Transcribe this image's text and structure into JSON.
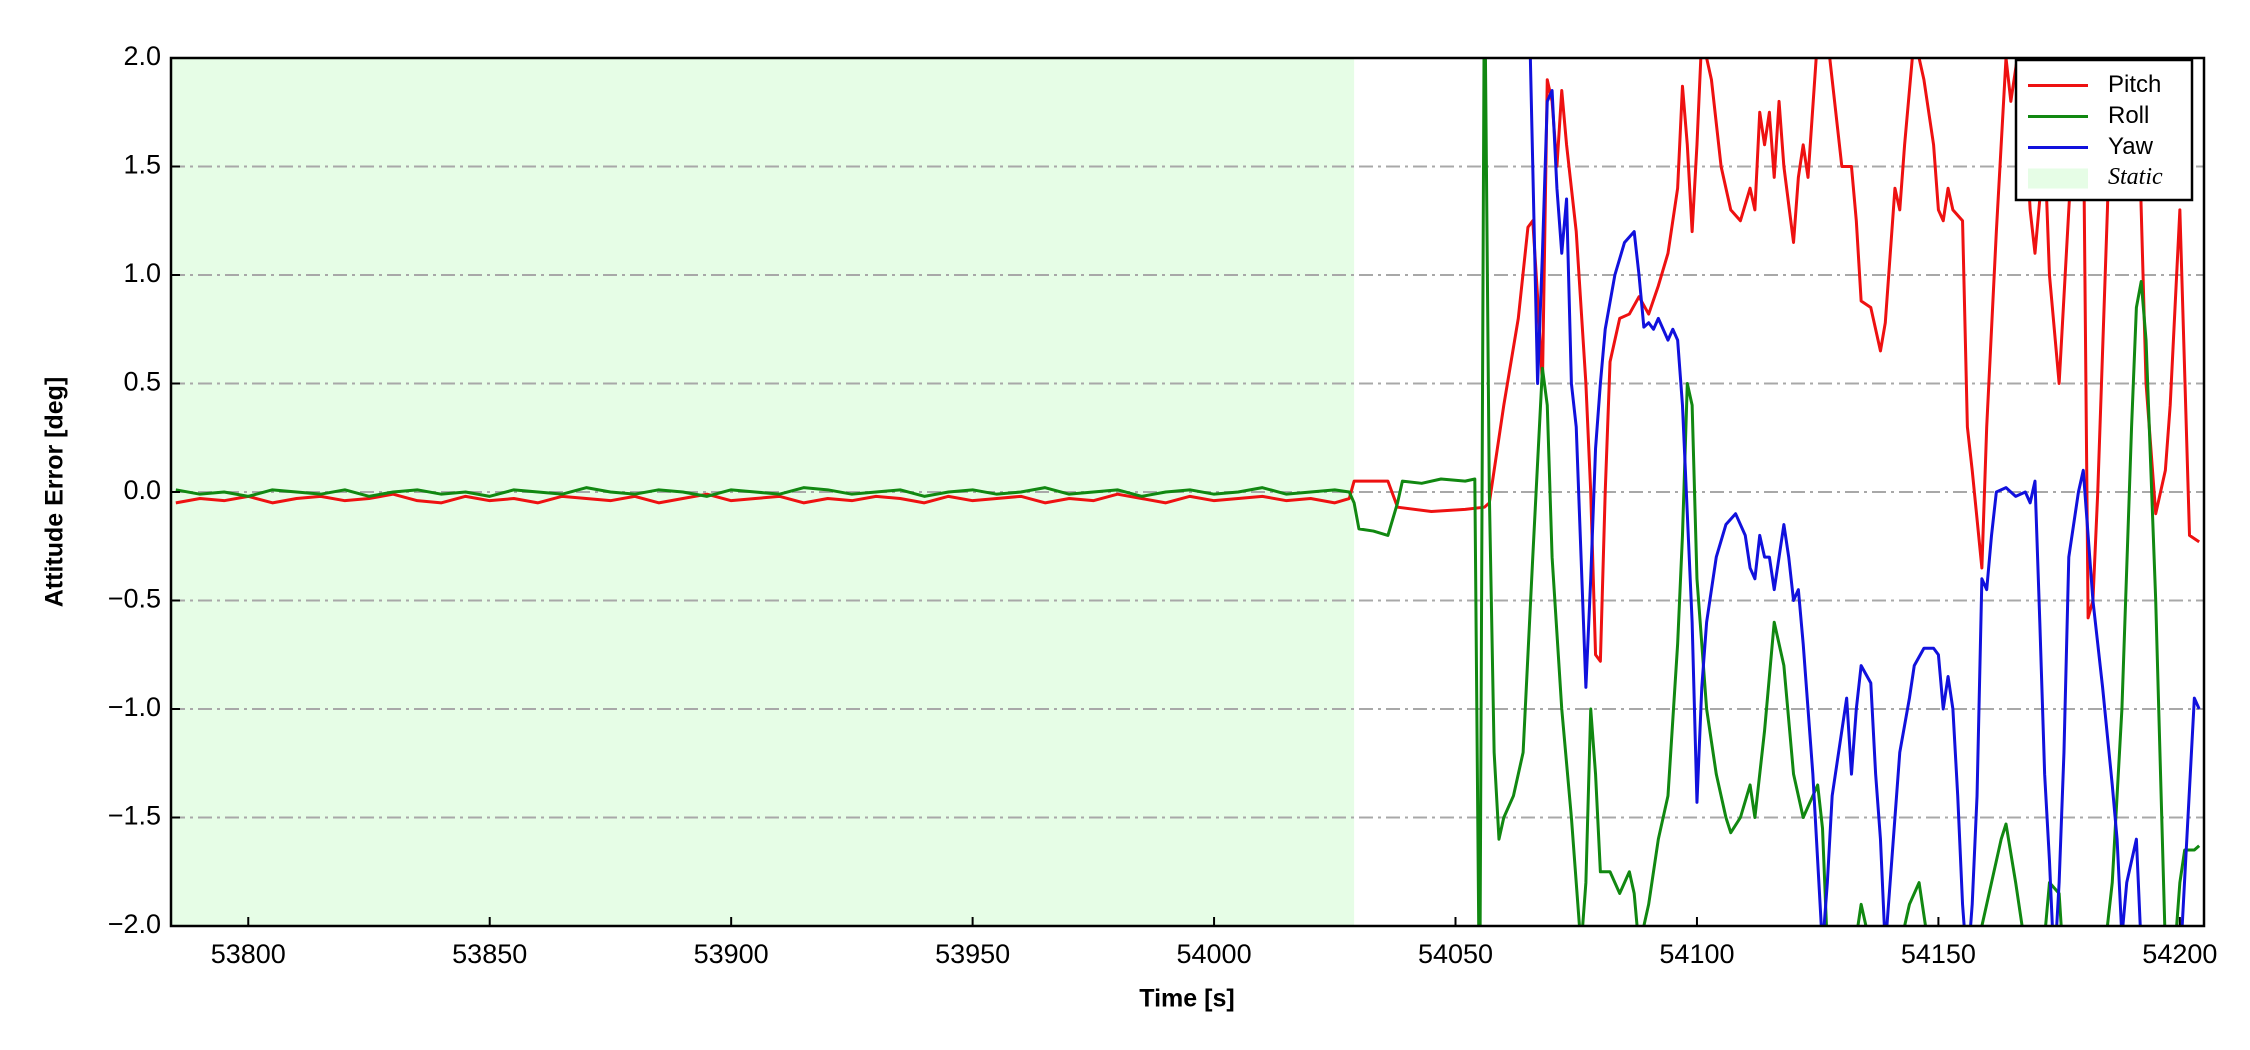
{
  "chart_data": {
    "type": "line",
    "xlabel": "Time [s]",
    "ylabel": "Attitude Error [deg]",
    "xlim": [
      53784,
      54205
    ],
    "ylim": [
      -2,
      2
    ],
    "xticks": [
      53800,
      53850,
      53900,
      53950,
      54000,
      54050,
      54100,
      54150,
      54200
    ],
    "yticks": [
      {
        "value": -2,
        "label": "−2.0"
      },
      {
        "value": -1.5,
        "label": "−1.5"
      },
      {
        "value": -1,
        "label": "−1.0"
      },
      {
        "value": -0.5,
        "label": "−0.5"
      },
      {
        "value": 0,
        "label": "0.0"
      },
      {
        "value": 0.5,
        "label": "0.5"
      },
      {
        "value": 1,
        "label": "1.0"
      },
      {
        "value": 1.5,
        "label": "1.5"
      },
      {
        "value": 2,
        "label": "2.0"
      }
    ],
    "grid": true,
    "legend": "upper right",
    "shaded": {
      "label": "Static",
      "span": [
        53784,
        54029
      ],
      "color": "#e6fde6"
    },
    "series": [
      {
        "name": "Pitch",
        "color": "#ee1111",
        "x": [
          53785,
          53790,
          53795,
          53800,
          53805,
          53810,
          53815,
          53820,
          53825,
          53830,
          53835,
          53840,
          53845,
          53850,
          53855,
          53860,
          53865,
          53870,
          53875,
          53880,
          53885,
          53890,
          53895,
          53900,
          53905,
          53910,
          53915,
          53920,
          53925,
          53930,
          53935,
          53940,
          53945,
          53950,
          53955,
          53960,
          53965,
          53970,
          53975,
          53980,
          53985,
          53990,
          53995,
          54000,
          54005,
          54010,
          54015,
          54020,
          54025,
          54028,
          54029,
          54036,
          54038,
          54045,
          54052,
          54056,
          54057,
          54060,
          54063,
          54065,
          54066,
          54067,
          54068,
          54069,
          54070,
          54071,
          54072,
          54073,
          54075,
          54077,
          54078,
          54079,
          54080,
          54081,
          54082,
          54084,
          54086,
          54088,
          54090,
          54092,
          54094,
          54096,
          54097,
          54098,
          54099,
          54100,
          54101,
          54103,
          54105,
          54107,
          54109,
          54111,
          54112,
          54113,
          54114,
          54115,
          54116,
          54117,
          54118,
          54120,
          54121,
          54122,
          54123,
          54125,
          54127,
          54128,
          54130,
          54132,
          54133,
          54134,
          54136,
          54138,
          54139,
          54141,
          54142,
          54143,
          54145,
          54147,
          54149,
          54150,
          54151,
          54152,
          54153,
          54155,
          54156,
          54157,
          54159,
          54160,
          54162,
          54164,
          54165,
          54167,
          54169,
          54170,
          54172,
          54173,
          54175,
          54177,
          54179,
          54180,
          54181,
          54182,
          54183,
          54185,
          54186,
          54188,
          54189,
          54190,
          54191,
          54193,
          54195,
          54197,
          54198,
          54200,
          54202,
          54204
        ],
        "values": [
          -0.05,
          -0.03,
          -0.04,
          -0.02,
          -0.05,
          -0.03,
          -0.02,
          -0.04,
          -0.03,
          -0.01,
          -0.04,
          -0.05,
          -0.02,
          -0.04,
          -0.03,
          -0.05,
          -0.02,
          -0.03,
          -0.04,
          -0.02,
          -0.05,
          -0.03,
          -0.01,
          -0.04,
          -0.03,
          -0.02,
          -0.05,
          -0.03,
          -0.04,
          -0.02,
          -0.03,
          -0.05,
          -0.02,
          -0.04,
          -0.03,
          -0.02,
          -0.05,
          -0.03,
          -0.04,
          -0.01,
          -0.03,
          -0.05,
          -0.02,
          -0.04,
          -0.03,
          -0.02,
          -0.04,
          -0.03,
          -0.05,
          -0.03,
          0.05,
          0.05,
          -0.07,
          -0.09,
          -0.08,
          -0.07,
          -0.05,
          0.4,
          0.8,
          1.22,
          1.25,
          0.9,
          0.5,
          1.9,
          1.8,
          1.5,
          1.85,
          1.6,
          1.2,
          0.5,
          0.0,
          -0.75,
          -0.78,
          0.0,
          0.6,
          0.8,
          0.82,
          0.9,
          0.82,
          0.95,
          1.1,
          1.4,
          1.87,
          1.6,
          1.2,
          1.6,
          2.1,
          1.9,
          1.5,
          1.3,
          1.25,
          1.4,
          1.3,
          1.75,
          1.6,
          1.75,
          1.45,
          1.8,
          1.5,
          1.15,
          1.45,
          1.6,
          1.45,
          2.1,
          2.1,
          1.9,
          1.5,
          1.5,
          1.25,
          0.88,
          0.85,
          0.65,
          0.78,
          1.4,
          1.3,
          1.6,
          2.1,
          1.9,
          1.6,
          1.3,
          1.25,
          1.4,
          1.3,
          1.25,
          0.3,
          0.1,
          -0.35,
          0.3,
          1.2,
          2.0,
          1.8,
          2.1,
          1.3,
          1.1,
          1.6,
          1.0,
          0.5,
          1.3,
          2.05,
          1.8,
          -0.58,
          -0.5,
          0.0,
          1.3,
          2.1,
          1.8,
          2.1,
          1.5,
          2.1,
          0.5,
          -0.1,
          0.1,
          0.4,
          1.3,
          -0.2,
          -0.23
        ]
      },
      {
        "name": "Roll",
        "color": "#118811",
        "x": [
          53785,
          53790,
          53795,
          53800,
          53805,
          53810,
          53815,
          53820,
          53825,
          53830,
          53835,
          53840,
          53845,
          53850,
          53855,
          53860,
          53865,
          53870,
          53875,
          53880,
          53885,
          53890,
          53895,
          53900,
          53905,
          53910,
          53915,
          53920,
          53925,
          53930,
          53935,
          53940,
          53945,
          53950,
          53955,
          53960,
          53965,
          53970,
          53975,
          53980,
          53985,
          53990,
          53995,
          54000,
          54005,
          54010,
          54015,
          54020,
          54025,
          54028,
          54029,
          54030,
          54033,
          54036,
          54038,
          54039,
          54043,
          54047,
          54052,
          54054,
          54055,
          54056,
          54057,
          54058,
          54059,
          54060,
          54062,
          54064,
          54066,
          54068,
          54069,
          54070,
          54072,
          54074,
          54076,
          54077,
          54078,
          54079,
          54080,
          54082,
          54084,
          54086,
          54087,
          54088,
          54090,
          54092,
          54094,
          54096,
          54097,
          54098,
          54099,
          54100,
          54102,
          54104,
          54106,
          54107,
          54109,
          54111,
          54112,
          54114,
          54116,
          54118,
          54120,
          54122,
          54124,
          54125,
          54126,
          54127,
          54129,
          54131,
          54133,
          54134,
          54136,
          54138,
          54140,
          54142,
          54144,
          54146,
          54148,
          54150,
          54155,
          54158,
          54160,
          54161,
          54163,
          54164,
          54166,
          54168,
          54170,
          54172,
          54173,
          54175,
          54176,
          54180,
          54184,
          54186,
          54188,
          54190,
          54191,
          54192,
          54193,
          54195,
          54196,
          54197,
          54199,
          54200,
          54201,
          54203,
          54204
        ],
        "values": [
          0.01,
          -0.01,
          0.0,
          -0.02,
          0.01,
          0.0,
          -0.01,
          0.01,
          -0.02,
          0.0,
          0.01,
          -0.01,
          0.0,
          -0.02,
          0.01,
          0.0,
          -0.01,
          0.02,
          0.0,
          -0.01,
          0.01,
          0.0,
          -0.02,
          0.01,
          0.0,
          -0.01,
          0.02,
          0.01,
          -0.01,
          0.0,
          0.01,
          -0.02,
          0.0,
          0.01,
          -0.01,
          0.0,
          0.02,
          -0.01,
          0.0,
          0.01,
          -0.02,
          0.0,
          0.01,
          -0.01,
          0.0,
          0.02,
          -0.01,
          0.0,
          0.01,
          0.0,
          -0.05,
          -0.17,
          -0.18,
          -0.2,
          -0.05,
          0.05,
          0.04,
          0.06,
          0.05,
          0.06,
          -2.5,
          2.5,
          0.0,
          -1.2,
          -1.6,
          -1.5,
          -1.4,
          -1.2,
          -0.3,
          0.57,
          0.4,
          -0.3,
          -1.0,
          -1.5,
          -2.1,
          -1.8,
          -1.0,
          -1.3,
          -1.75,
          -1.75,
          -1.85,
          -1.75,
          -1.85,
          -2.1,
          -1.9,
          -1.6,
          -1.4,
          -0.7,
          -0.2,
          0.5,
          0.4,
          -0.4,
          -1.0,
          -1.3,
          -1.5,
          -1.57,
          -1.5,
          -1.35,
          -1.5,
          -1.1,
          -0.6,
          -0.8,
          -1.3,
          -1.5,
          -1.4,
          -1.35,
          -1.55,
          -2.1,
          -2.2,
          -2.1,
          -2.05,
          -1.9,
          -2.1,
          -2.2,
          -2.3,
          -2.1,
          -1.9,
          -1.8,
          -2.1,
          -2.3,
          -2.4,
          -2.1,
          -1.9,
          -1.8,
          -1.6,
          -1.53,
          -1.8,
          -2.1,
          -2.3,
          -2.05,
          -1.8,
          -1.85,
          -2.2,
          -2.3,
          -2.2,
          -1.8,
          -1.0,
          0.3,
          0.85,
          0.97,
          0.7,
          -0.5,
          -1.3,
          -2.1,
          -2.1,
          -1.8,
          -1.65,
          -1.65,
          -1.63
        ]
      },
      {
        "name": "Yaw",
        "color": "#1111dd",
        "x": [
          54065,
          54067,
          54068,
          54069,
          54070,
          54071,
          54072,
          54073,
          54074,
          54075,
          54076,
          54077,
          54078,
          54079,
          54080,
          54081,
          54083,
          54085,
          54087,
          54088,
          54089,
          54090,
          54091,
          54092,
          54094,
          54095,
          54096,
          54097,
          54098,
          54099,
          54100,
          54101,
          54102,
          54104,
          54106,
          54108,
          54110,
          54111,
          54112,
          54113,
          54114,
          54115,
          54116,
          54117,
          54118,
          54119,
          54120,
          54121,
          54122,
          54124,
          54126,
          54127,
          54128,
          54130,
          54131,
          54132,
          54133,
          54134,
          54136,
          54137,
          54138,
          54139,
          54141,
          54142,
          54144,
          54145,
          54147,
          54149,
          54150,
          54151,
          54152,
          54153,
          54154,
          54155,
          54156,
          54157,
          54158,
          54159,
          54160,
          54161,
          54162,
          54164,
          54166,
          54168,
          54169,
          54170,
          54171,
          54172,
          54173,
          54174,
          54175,
          54176,
          54177,
          54179,
          54180,
          54181,
          54182,
          54184,
          54186,
          54187,
          54188,
          54189,
          54191,
          54192,
          54193,
          54195,
          54200,
          54203,
          54204
        ],
        "values": [
          2.5,
          0.5,
          1.1,
          1.8,
          1.85,
          1.4,
          1.1,
          1.35,
          0.5,
          0.3,
          -0.3,
          -0.9,
          -0.4,
          0.2,
          0.5,
          0.75,
          1.0,
          1.15,
          1.2,
          1.0,
          0.76,
          0.78,
          0.75,
          0.8,
          0.7,
          0.75,
          0.7,
          0.4,
          -0.1,
          -0.6,
          -1.43,
          -0.9,
          -0.6,
          -0.3,
          -0.15,
          -0.1,
          -0.2,
          -0.35,
          -0.4,
          -0.2,
          -0.3,
          -0.3,
          -0.45,
          -0.3,
          -0.15,
          -0.3,
          -0.5,
          -0.45,
          -0.7,
          -1.3,
          -2.1,
          -1.8,
          -1.4,
          -1.1,
          -0.95,
          -1.3,
          -1.0,
          -0.8,
          -0.88,
          -1.3,
          -1.6,
          -2.1,
          -1.5,
          -1.2,
          -0.95,
          -0.8,
          -0.72,
          -0.72,
          -0.75,
          -1.0,
          -0.85,
          -1.0,
          -1.4,
          -1.9,
          -2.2,
          -1.9,
          -1.4,
          -0.4,
          -0.45,
          -0.2,
          0.0,
          0.02,
          -0.02,
          0.0,
          -0.05,
          0.05,
          -0.6,
          -1.3,
          -1.7,
          -2.2,
          -1.8,
          -1.2,
          -0.3,
          0.0,
          0.1,
          -0.2,
          -0.5,
          -0.9,
          -1.35,
          -1.6,
          -2.05,
          -1.8,
          -1.6,
          -2.1,
          -2.3,
          -2.3,
          -2.2,
          -0.95,
          -1.0
        ]
      }
    ]
  }
}
